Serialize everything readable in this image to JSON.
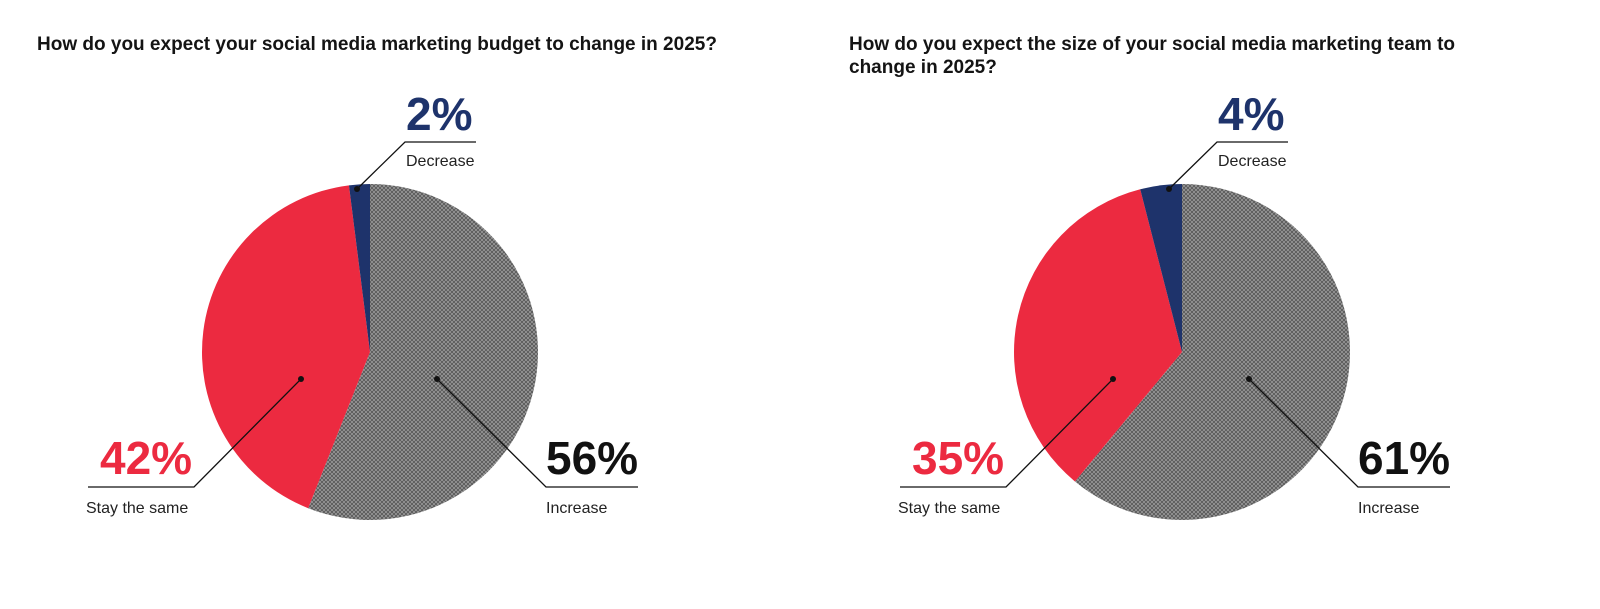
{
  "colors": {
    "increase": "#8a8a8a",
    "stay_the_same": "#ec2a40",
    "decrease": "#1e336b",
    "text": "#111111"
  },
  "chart_data": [
    {
      "type": "pie",
      "title": "How do you expect your social media marketing budget to change in 2025?",
      "slices": [
        {
          "label": "Increase",
          "value": 56,
          "display": "56%",
          "color": "#8a8a8a",
          "pattern": "crosshatch"
        },
        {
          "label": "Stay the same",
          "value": 42,
          "display": "42%",
          "color": "#ec2a40"
        },
        {
          "label": "Decrease",
          "value": 2,
          "display": "2%",
          "color": "#1e336b"
        }
      ]
    },
    {
      "type": "pie",
      "title": "How do you expect the size of your social media marketing team to change in 2025?",
      "slices": [
        {
          "label": "Increase",
          "value": 61,
          "display": "61%",
          "color": "#8a8a8a",
          "pattern": "crosshatch"
        },
        {
          "label": "Stay the same",
          "value": 35,
          "display": "35%",
          "color": "#ec2a40"
        },
        {
          "label": "Decrease",
          "value": 4,
          "display": "4%",
          "color": "#1e336b"
        }
      ]
    }
  ]
}
